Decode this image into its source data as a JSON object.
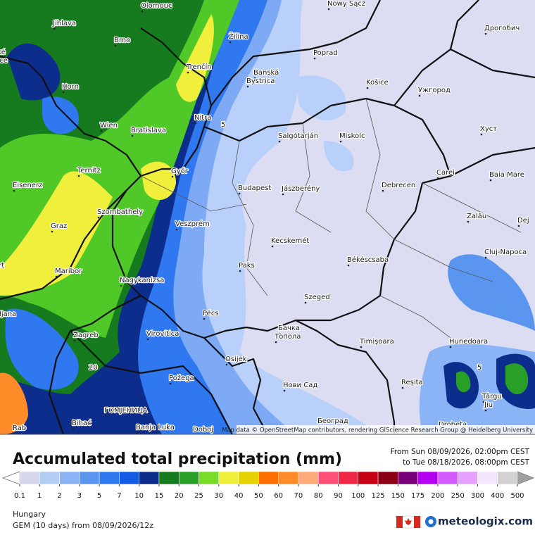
{
  "map": {
    "cities": [
      "Olomouc",
      "Nowy Sącz",
      "Дрогобич",
      "Jihlava",
      "Brno",
      "Žilina",
      "České",
      "Budějovice",
      "Poprad",
      "Trenčín",
      "Banská",
      "Bystrica",
      "Košice",
      "Ужгород",
      "Horn",
      "Wien",
      "Bratislava",
      "Nitra",
      "Salgótarján",
      "Miskolc",
      "Хуст",
      "Ternitz",
      "Győr",
      "Carei",
      "Baia Mare",
      "Eisenerz",
      "Budapest",
      "Jászberény",
      "Debrecen",
      "Szombathely",
      "Zalău",
      "Graz",
      "Veszprém",
      "Dej",
      "Kecskemét",
      "Cluj-Napoca",
      "Klagenfurt",
      "Paks",
      "Békéscsaba",
      "Maribor",
      "Nagykanizsa",
      "Ljubljana",
      "Szeged",
      "Pécs",
      "Бачка",
      "Топола",
      "Zagreb",
      "Virovitica",
      "Timișoara",
      "Hunedoara",
      "Osijek",
      "Požega",
      "Нови Сад",
      "Reșita",
      "Târgu",
      "Jiu",
      "ГОМЈЕНИЦА",
      "Bihać",
      "Banja Luka",
      "Doboj",
      "Београд",
      "Drobeta",
      "Rab"
    ],
    "contour_labels": [
      "5",
      "20",
      "5"
    ],
    "attribution": "Map data © OpenStreetMap contributors, rendering GIScience Research Group @ Heidelberg University"
  },
  "legend": {
    "title": "Accumulated total precipitation (mm)",
    "period": [
      "From Sun 08/09/2026, 02:00pm CEST",
      "to Tue 08/18/2026, 08:00pm CEST"
    ],
    "ticks": [
      0.1,
      1,
      2,
      3,
      5,
      7,
      10,
      15,
      20,
      25,
      30,
      40,
      50,
      60,
      70,
      80,
      90,
      100,
      125,
      150,
      175,
      200,
      250,
      300,
      400,
      500
    ],
    "colors": [
      "#d6d6ee",
      "#b4cdf5",
      "#8ab4f5",
      "#5a96f0",
      "#2f78f0",
      "#145ae6",
      "#0c2d8c",
      "#167a1e",
      "#28a028",
      "#78dc28",
      "#f0f03c",
      "#e6d200",
      "#ff6e00",
      "#ff8c28",
      "#ffaa78",
      "#ff5078",
      "#f02846",
      "#c80014",
      "#8c0014",
      "#780078",
      "#b400f0",
      "#d25aff",
      "#e6a0ff",
      "#f5e6ff",
      "#d2d2d2"
    ],
    "under_color": "#ffffff",
    "over_color": "#a0a0a0"
  },
  "footer": {
    "region": "Hungary",
    "model": "GEM (10 days) from 08/09/2026/12z",
    "brand": "meteologix.com"
  }
}
